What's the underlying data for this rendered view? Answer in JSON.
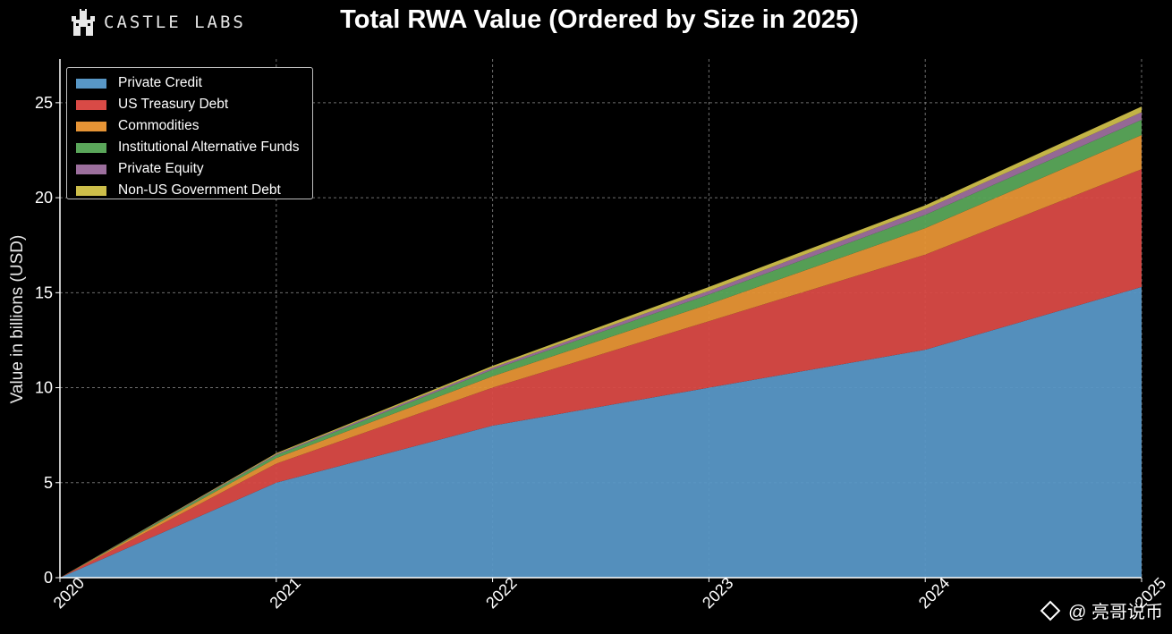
{
  "brand": {
    "name": "CASTLE LABS",
    "icon": "castle-icon"
  },
  "watermark": {
    "icon": "binance-diamond-icon",
    "text": "@ 亮哥说币"
  },
  "chart_data": {
    "type": "area",
    "stacked": true,
    "title": "Total RWA Value (Ordered by Size in 2025)",
    "xlabel": "",
    "ylabel": "Value in billions (USD)",
    "x": [
      "2020",
      "2021",
      "2022",
      "2023",
      "2024",
      "2025"
    ],
    "xlim": [
      2020,
      2025
    ],
    "ylim": [
      0,
      27.3
    ],
    "yticks": [
      "0",
      "5",
      "10",
      "15",
      "20",
      "25"
    ],
    "grid": true,
    "legend_position": "top-left",
    "series": [
      {
        "name": "Private Credit",
        "color": "#5897c6",
        "values": [
          0,
          5.0,
          8.0,
          10.0,
          12.0,
          15.3
        ]
      },
      {
        "name": "US Treasury Debt",
        "color": "#d94a46",
        "values": [
          0,
          1.0,
          2.0,
          3.5,
          5.0,
          6.2
        ]
      },
      {
        "name": "Commodities",
        "color": "#e69435",
        "values": [
          0,
          0.3,
          0.6,
          0.9,
          1.4,
          1.8
        ]
      },
      {
        "name": "Institutional Alternative Funds",
        "color": "#5aa65a",
        "values": [
          0,
          0.15,
          0.35,
          0.5,
          0.7,
          0.8
        ]
      },
      {
        "name": "Private Equity",
        "color": "#9c6f9d",
        "values": [
          0,
          0.05,
          0.1,
          0.2,
          0.3,
          0.4
        ]
      },
      {
        "name": "Non-US Government Debt",
        "color": "#cdbe4a",
        "values": [
          0,
          0.05,
          0.1,
          0.2,
          0.2,
          0.3
        ]
      }
    ]
  }
}
